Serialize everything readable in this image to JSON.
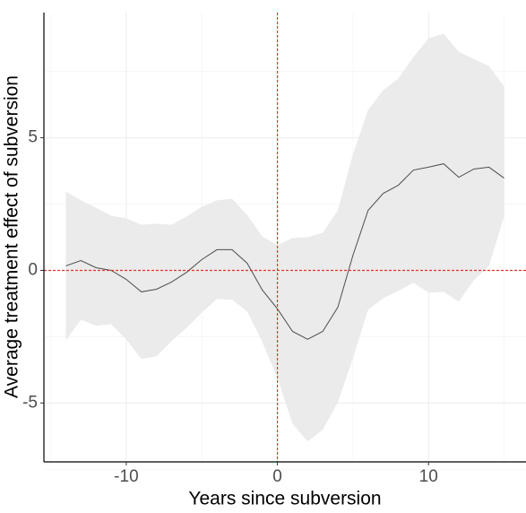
{
  "chart_data": {
    "type": "line",
    "x_label": "Years since subversion",
    "y_label": "Average treatment effect of subversion",
    "x": [
      -14,
      -13,
      -12,
      -11,
      -10,
      -9,
      -8,
      -7,
      -6,
      -5,
      -4,
      -3,
      -2,
      -1,
      0,
      1,
      2,
      3,
      4,
      5,
      6,
      7,
      8,
      9,
      10,
      11,
      12,
      13,
      14,
      15
    ],
    "series": [
      {
        "color": "#4d4d4d",
        "band_color": "#ebebeb",
        "values": [
          0.17,
          0.37,
          0.1,
          0.0,
          -0.34,
          -0.81,
          -0.71,
          -0.44,
          -0.07,
          0.41,
          0.78,
          0.78,
          0.27,
          -0.74,
          -1.45,
          -2.3,
          -2.6,
          -2.3,
          -1.39,
          0.57,
          2.26,
          2.9,
          3.21,
          3.78,
          3.89,
          4.02,
          3.51,
          3.82,
          3.89,
          3.48
        ],
        "upper": [
          2.97,
          2.64,
          2.36,
          2.06,
          1.96,
          1.72,
          1.76,
          1.72,
          2.03,
          2.4,
          2.64,
          2.7,
          2.09,
          1.28,
          0.95,
          1.22,
          1.25,
          1.42,
          2.26,
          4.39,
          6.05,
          6.79,
          7.23,
          8.04,
          8.75,
          8.92,
          8.24,
          7.97,
          7.7,
          6.93
        ],
        "lower": [
          -2.64,
          -1.86,
          -2.09,
          -2.03,
          -2.6,
          -3.34,
          -3.24,
          -2.67,
          -2.16,
          -1.59,
          -1.08,
          -1.11,
          -1.55,
          -2.7,
          -4.05,
          -5.78,
          -6.45,
          -6.01,
          -4.97,
          -3.31,
          -1.49,
          -1.05,
          -0.78,
          -0.47,
          -0.84,
          -0.81,
          -1.18,
          -0.37,
          0.17,
          2.03
        ]
      }
    ],
    "xlim": [
      -15.45,
      16.45
    ],
    "ylim": [
      -7.22,
      9.72
    ],
    "xticks": [
      -10,
      0,
      10
    ],
    "yticks": [
      -5,
      0,
      5
    ],
    "x_minor_grid": [
      -15,
      -5,
      5,
      15
    ],
    "y_minor_grid": [
      -7.5,
      -2.5,
      2.5,
      7.5
    ],
    "grid": true,
    "reference_lines": {
      "x": 0,
      "y": 0,
      "color": "#e8302a"
    }
  }
}
